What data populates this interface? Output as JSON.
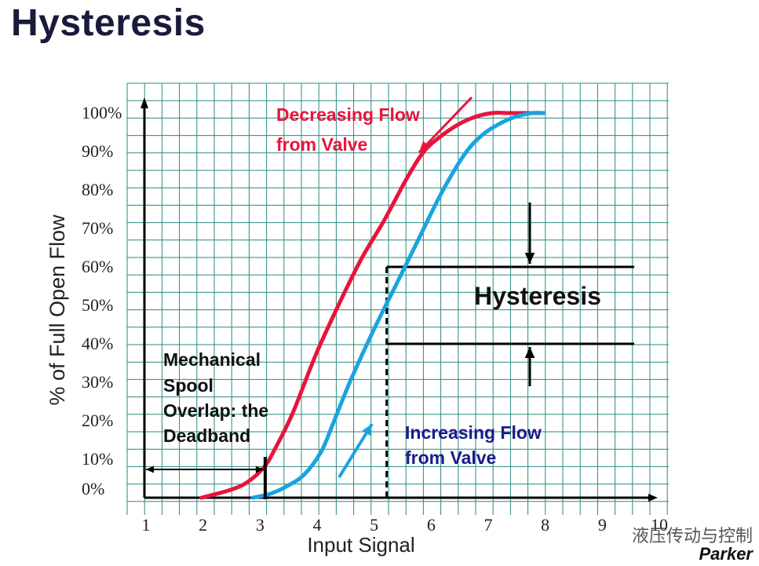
{
  "title": "Hysteresis",
  "colors": {
    "decreasing": "#e8143c",
    "increasing": "#1aa3e0",
    "grid": "#2a8a84",
    "axis": "#000000",
    "increasing_text": "#1a1a8c"
  },
  "watermark": "液压传动与控制",
  "brand": "Parker",
  "chart_data": {
    "type": "line",
    "title": "Hysteresis",
    "xlabel": "Input Signal",
    "ylabel": "% of Full Open Flow",
    "x_ticks": [
      "1",
      "2",
      "3",
      "4",
      "5",
      "6",
      "7",
      "8",
      "9",
      "10"
    ],
    "y_ticks": [
      "0%",
      "10%",
      "20%",
      "30%",
      "40%",
      "50%",
      "60%",
      "70%",
      "80%",
      "90%",
      "100%"
    ],
    "xlim": [
      1,
      10
    ],
    "ylim": [
      0,
      100
    ],
    "grid": true,
    "series": [
      {
        "name": "Decreasing Flow from Valve",
        "x": [
          2.0,
          2.5,
          2.8,
          3.1,
          3.3,
          3.6,
          4.0,
          4.4,
          4.8,
          5.2,
          5.6,
          5.9,
          6.2,
          6.5,
          6.8,
          7.1,
          7.4,
          7.7,
          8.0
        ],
        "y": [
          0,
          2,
          4,
          8,
          13,
          22,
          37,
          50,
          62,
          72,
          83,
          90,
          94,
          97,
          99,
          100,
          100,
          100,
          100
        ]
      },
      {
        "name": "Increasing Flow from Valve",
        "x": [
          2.9,
          3.2,
          3.5,
          3.8,
          4.1,
          4.3,
          4.6,
          5.0,
          5.4,
          5.8,
          6.2,
          6.6,
          6.9,
          7.2,
          7.5,
          7.8,
          8.0
        ],
        "y": [
          0,
          1,
          3,
          6,
          12,
          19,
          30,
          43,
          55,
          67,
          79,
          89,
          94,
          97,
          99,
          100,
          100
        ]
      }
    ],
    "annotations": [
      {
        "text_lines": [
          "Decreasing Flow",
          "from Valve"
        ],
        "series": "decreasing"
      },
      {
        "text_lines": [
          "Increasing Flow",
          "from Valve"
        ],
        "series": "increasing"
      },
      {
        "text_lines": [
          "Hysteresis"
        ],
        "between": [
          40,
          60
        ],
        "at_x": 5
      },
      {
        "text_lines": [
          "Mechanical",
          "Spool",
          "Overlap: the",
          "Deadband"
        ],
        "deadband_x": [
          1,
          3.2
        ]
      }
    ]
  }
}
